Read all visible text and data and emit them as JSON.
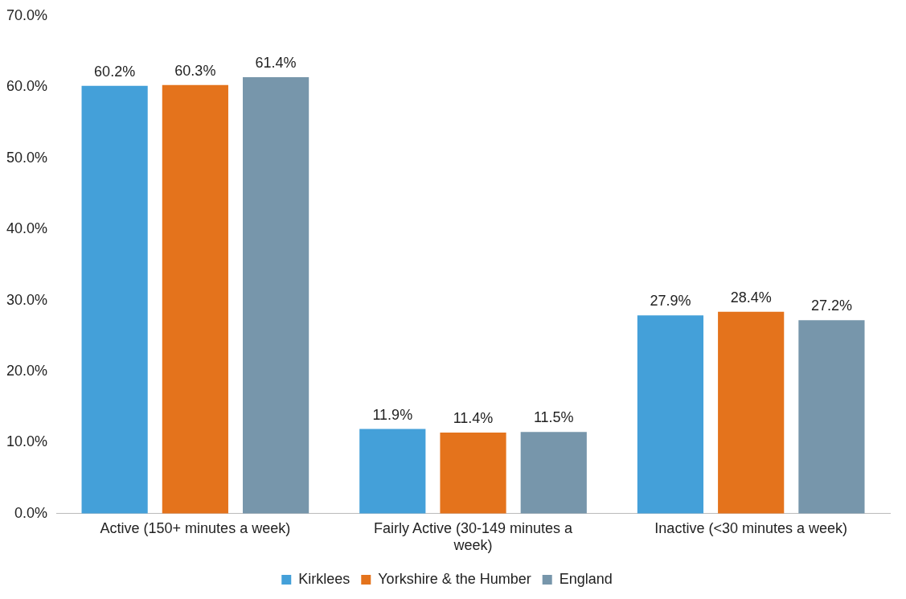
{
  "chart_data": {
    "type": "bar",
    "categories": [
      "Active (150+ minutes a week)",
      "Fairly Active (30-149 minutes a week)",
      "Inactive (<30 minutes a week)"
    ],
    "series": [
      {
        "name": "Kirklees",
        "color": "#44a0d9",
        "values": [
          60.2,
          11.9,
          27.9
        ],
        "value_labels": [
          "60.2%",
          "11.9%",
          "27.9%"
        ]
      },
      {
        "name": "Yorkshire & the Humber",
        "color": "#e4731c",
        "values": [
          60.3,
          11.4,
          28.4
        ],
        "value_labels": [
          "60.3%",
          "11.4%",
          "28.4%"
        ]
      },
      {
        "name": "England",
        "color": "#7796ab",
        "values": [
          61.4,
          11.5,
          27.2
        ],
        "value_labels": [
          "61.4%",
          "11.5%",
          "27.2%"
        ]
      }
    ],
    "ylim": [
      0,
      70
    ],
    "yticks": [
      {
        "value": 0,
        "label": "0.0%"
      },
      {
        "value": 10,
        "label": "10.0%"
      },
      {
        "value": 20,
        "label": "20.0%"
      },
      {
        "value": 30,
        "label": "30.0%"
      },
      {
        "value": 40,
        "label": "40.0%"
      },
      {
        "value": 50,
        "label": "50.0%"
      },
      {
        "value": 60,
        "label": "60.0%"
      },
      {
        "value": 70,
        "label": "70.0%"
      }
    ],
    "grid": false,
    "legend": "bottom"
  }
}
